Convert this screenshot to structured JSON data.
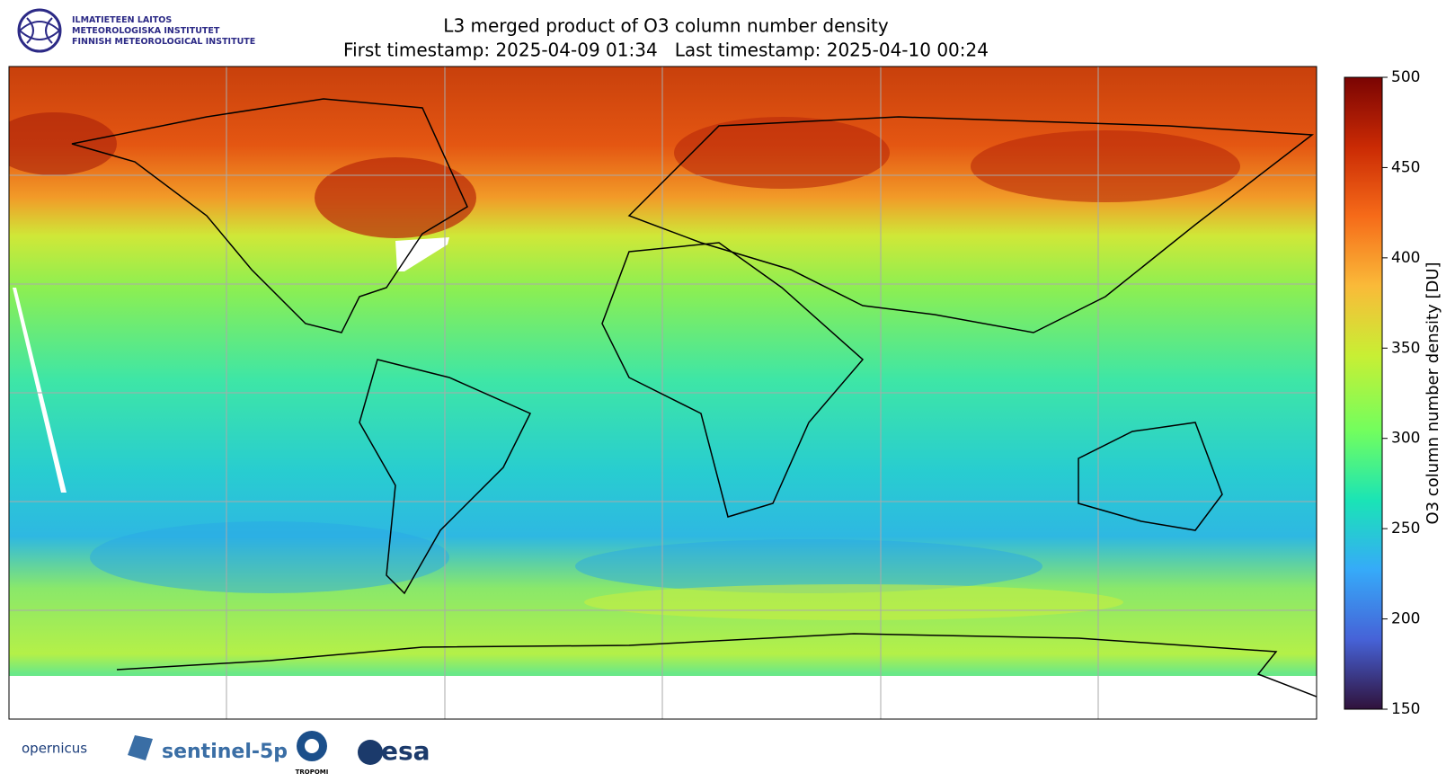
{
  "header": {
    "institute": [
      "ILMATIETEEN LAITOS",
      "METEOROLOGISKA INSTITUTET",
      "FINNISH METEOROLOGICAL INSTITUTE"
    ],
    "title": "L3 merged product of O3 column number density",
    "subtitle": "First timestamp: 2025-04-09 01:34   Last timestamp: 2025-04-10 00:24"
  },
  "colorbar": {
    "label": "O3 column number density [DU]",
    "lim": [
      150,
      500
    ],
    "ticks": [
      150,
      200,
      250,
      300,
      350,
      400,
      450,
      500
    ]
  },
  "logos": [
    "opernicus",
    "sentinel-5p",
    "TROPOMI",
    "esa"
  ]
}
